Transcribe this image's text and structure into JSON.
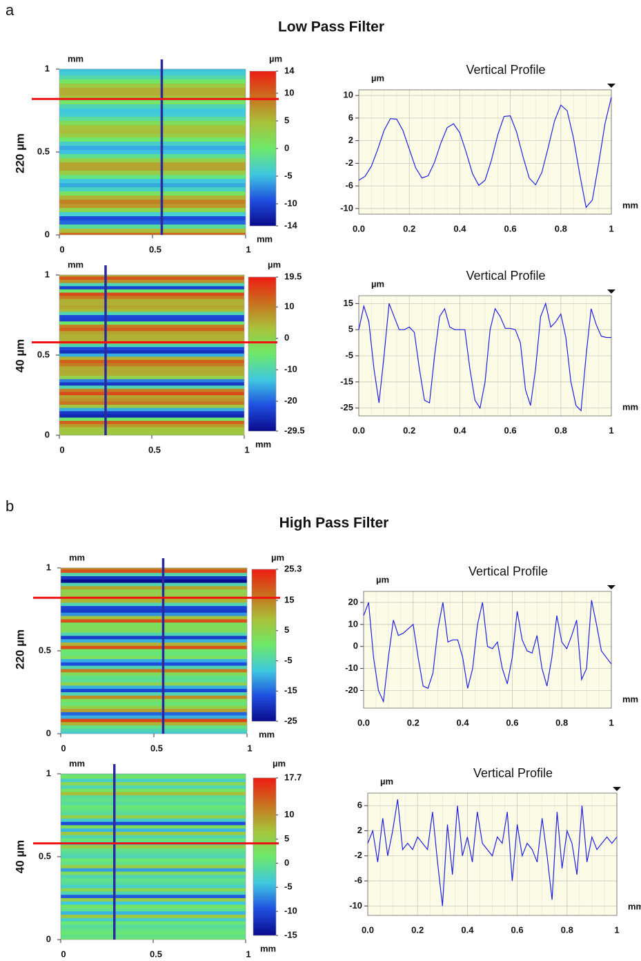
{
  "panels": [
    {
      "letter": "a",
      "title": "Low Pass Filter",
      "rows": [
        {
          "label": "220 µm"
        },
        {
          "label": "40 µm"
        }
      ]
    },
    {
      "letter": "b",
      "title": "High Pass Filter",
      "rows": [
        {
          "label": "220 µm"
        },
        {
          "label": "40 µm"
        }
      ]
    }
  ],
  "chart_data": [
    {
      "type": "heatmap",
      "xlabel": "mm",
      "ylabel": "mm",
      "colorbar_label": "µm",
      "xlim": [
        0,
        1
      ],
      "ylim": [
        0,
        1
      ],
      "xticks": [
        0,
        0.5,
        1
      ],
      "yticks": [
        0,
        0.5,
        1
      ],
      "clim": [
        -14,
        14
      ],
      "cticks": [
        14,
        10,
        5,
        0,
        -5,
        -10,
        -14
      ],
      "colormap": [
        "#0a0a8c",
        "#1f4fe0",
        "#3fc8e0",
        "#6de86a",
        "#a8c23a",
        "#c9701e",
        "#ee1c14"
      ]
    },
    {
      "type": "line",
      "title": "Vertical Profile",
      "xlabel": "mm",
      "ylabel": "µm",
      "xlim": [
        0,
        1
      ],
      "ylim": [
        -11,
        11
      ],
      "xticks": [
        {
          "value": 0,
          "label": "0.0"
        },
        0.2,
        0.4,
        0.6,
        0.8,
        1
      ],
      "yticks": [
        10,
        6,
        2,
        -2,
        -6,
        -10
      ],
      "grid": true,
      "x": [
        0,
        0.025,
        0.05,
        0.075,
        0.1,
        0.125,
        0.15,
        0.175,
        0.2,
        0.225,
        0.25,
        0.275,
        0.3,
        0.325,
        0.35,
        0.375,
        0.4,
        0.425,
        0.45,
        0.475,
        0.5,
        0.525,
        0.55,
        0.575,
        0.6,
        0.625,
        0.65,
        0.675,
        0.7,
        0.725,
        0.75,
        0.775,
        0.8,
        0.825,
        0.85,
        0.875,
        0.9,
        0.925,
        0.95,
        0.975,
        1
      ],
      "series": [
        {
          "color": "#1f1fe0",
          "values": [
            -5,
            -4.3,
            -2.5,
            0.5,
            3.8,
            5.9,
            5.8,
            3.8,
            0.5,
            -2.8,
            -4.6,
            -4.2,
            -1.8,
            1.6,
            4.3,
            5,
            3.4,
            0,
            -3.8,
            -5.9,
            -5,
            -1.5,
            3,
            6.3,
            6.4,
            3.5,
            -0.8,
            -4.6,
            -5.8,
            -3.6,
            0.8,
            5.5,
            8.3,
            7.3,
            2.5,
            -4,
            -9.8,
            -8.5,
            -2,
            5,
            9.7
          ]
        }
      ]
    },
    {
      "type": "heatmap",
      "xlabel": "mm",
      "ylabel": "mm",
      "colorbar_label": "µm",
      "xlim": [
        0,
        1
      ],
      "ylim": [
        0,
        1
      ],
      "xticks": [
        0,
        0.5,
        1
      ],
      "yticks": [
        0,
        0.5,
        1
      ],
      "clim": [
        -29.5,
        19.5
      ],
      "cticks": [
        19.5,
        10,
        0,
        -10,
        -20,
        -29.5
      ],
      "colormap": [
        "#0a0a8c",
        "#1f4fe0",
        "#3fc8e0",
        "#6de86a",
        "#a8c23a",
        "#c9701e",
        "#ee1c14"
      ]
    },
    {
      "type": "line",
      "title": "Vertical Profile",
      "xlabel": "mm",
      "ylabel": "µm",
      "xlim": [
        0,
        1
      ],
      "ylim": [
        -28,
        18
      ],
      "xticks": [
        {
          "value": 0,
          "label": "0.0"
        },
        0.2,
        0.4,
        0.6,
        0.8,
        1
      ],
      "yticks": [
        15,
        5,
        -5,
        -15,
        -25
      ],
      "grid": true,
      "x": [
        0,
        0.02,
        0.04,
        0.06,
        0.08,
        0.1,
        0.12,
        0.14,
        0.16,
        0.18,
        0.2,
        0.22,
        0.24,
        0.26,
        0.28,
        0.3,
        0.32,
        0.34,
        0.36,
        0.38,
        0.4,
        0.42,
        0.44,
        0.46,
        0.48,
        0.5,
        0.52,
        0.54,
        0.56,
        0.58,
        0.6,
        0.62,
        0.64,
        0.66,
        0.68,
        0.7,
        0.72,
        0.74,
        0.76,
        0.78,
        0.8,
        0.82,
        0.84,
        0.86,
        0.88,
        0.9,
        0.92,
        0.94,
        0.96,
        0.98,
        1
      ],
      "series": [
        {
          "color": "#1f1fe0",
          "values": [
            5,
            14,
            8,
            -10,
            -23,
            -5,
            15,
            10,
            5,
            5,
            6,
            4,
            -10,
            -22,
            -23,
            -5,
            10,
            13,
            6,
            5,
            5,
            5,
            -10,
            -22,
            -25,
            -15,
            5,
            13,
            10,
            5.5,
            5.5,
            5,
            0,
            -18,
            -24,
            -10,
            10,
            15,
            6,
            8,
            11,
            2,
            -15,
            -24,
            -26,
            -5,
            13,
            7,
            2.5,
            2,
            2
          ]
        }
      ]
    },
    {
      "type": "heatmap",
      "xlabel": "mm",
      "ylabel": "mm",
      "colorbar_label": "µm",
      "xlim": [
        0,
        1
      ],
      "ylim": [
        0,
        1
      ],
      "xticks": [
        0,
        0.5,
        1
      ],
      "yticks": [
        0,
        0.5,
        1
      ],
      "clim": [
        -25,
        25.3
      ],
      "cticks": [
        25.3,
        15,
        5,
        -5,
        -15,
        -25
      ],
      "colormap": [
        "#0a0a8c",
        "#1f4fe0",
        "#3fc8e0",
        "#6de86a",
        "#a8c23a",
        "#c9701e",
        "#ee1c14"
      ]
    },
    {
      "type": "line",
      "title": "Vertical Profile",
      "xlabel": "mm",
      "ylabel": "µm",
      "xlim": [
        0,
        1
      ],
      "ylim": [
        -28,
        25
      ],
      "xticks": [
        {
          "value": 0,
          "label": "0.0"
        },
        0.2,
        0.4,
        0.6,
        0.8,
        1
      ],
      "yticks": [
        20,
        10,
        0,
        -10,
        -20
      ],
      "grid": true,
      "x": [
        0,
        0.02,
        0.04,
        0.06,
        0.08,
        0.1,
        0.12,
        0.14,
        0.16,
        0.18,
        0.2,
        0.22,
        0.24,
        0.26,
        0.28,
        0.3,
        0.32,
        0.34,
        0.36,
        0.38,
        0.4,
        0.42,
        0.44,
        0.46,
        0.48,
        0.5,
        0.52,
        0.54,
        0.56,
        0.58,
        0.6,
        0.62,
        0.64,
        0.66,
        0.68,
        0.7,
        0.72,
        0.74,
        0.76,
        0.78,
        0.8,
        0.82,
        0.84,
        0.86,
        0.88,
        0.9,
        0.92,
        0.94,
        0.96,
        0.98,
        1
      ],
      "series": [
        {
          "color": "#1f1fe0",
          "values": [
            14,
            20,
            -5,
            -20,
            -25,
            -5,
            12,
            5,
            6,
            8,
            10,
            -5,
            -18,
            -19,
            -12,
            8,
            20,
            2,
            3,
            3,
            -5,
            -19,
            -10,
            10,
            20,
            0,
            -1,
            2,
            -10,
            -17,
            -5,
            16,
            3,
            -2,
            -3,
            5,
            -10,
            -18,
            -5,
            14,
            2,
            -1,
            5,
            12,
            -15,
            -10,
            21,
            10,
            -2,
            -5,
            -8
          ]
        }
      ]
    },
    {
      "type": "heatmap",
      "xlabel": "mm",
      "ylabel": "mm",
      "colorbar_label": "µm",
      "xlim": [
        0,
        1
      ],
      "ylim": [
        0,
        1
      ],
      "xticks": [
        0,
        0.5,
        1
      ],
      "yticks": [
        0,
        0.5,
        1
      ],
      "clim": [
        -15,
        17.7
      ],
      "cticks": [
        17.7,
        10,
        5,
        0,
        -5,
        -10,
        -15
      ],
      "colormap": [
        "#0a0a8c",
        "#1f4fe0",
        "#3fc8e0",
        "#6de86a",
        "#a8c23a",
        "#c9701e",
        "#ee1c14"
      ]
    },
    {
      "type": "line",
      "title": "Vertical Profile",
      "xlabel": "mm",
      "ylabel": "µm",
      "xlim": [
        0,
        1
      ],
      "ylim": [
        -11.5,
        8
      ],
      "xticks": [
        {
          "value": 0,
          "label": "0.0"
        },
        0.2,
        0.4,
        0.6,
        0.8,
        1
      ],
      "yticks": [
        6,
        2,
        -2,
        -6,
        -10
      ],
      "grid": true,
      "x": [
        0,
        0.02,
        0.04,
        0.06,
        0.08,
        0.1,
        0.12,
        0.14,
        0.16,
        0.18,
        0.2,
        0.22,
        0.24,
        0.26,
        0.28,
        0.3,
        0.32,
        0.34,
        0.36,
        0.38,
        0.4,
        0.42,
        0.44,
        0.46,
        0.48,
        0.5,
        0.52,
        0.54,
        0.56,
        0.58,
        0.6,
        0.62,
        0.64,
        0.66,
        0.68,
        0.7,
        0.72,
        0.74,
        0.76,
        0.78,
        0.8,
        0.82,
        0.84,
        0.86,
        0.88,
        0.9,
        0.92,
        0.94,
        0.96,
        0.98,
        1
      ],
      "series": [
        {
          "color": "#1f1fe0",
          "values": [
            0,
            2,
            -3,
            4,
            -2,
            2,
            7,
            -1,
            0,
            -1,
            1,
            0,
            -1,
            5,
            -3,
            -10,
            3,
            -5,
            6,
            -2,
            1,
            -3,
            5,
            0,
            -1,
            -2,
            1,
            0,
            5,
            -6,
            3,
            -2,
            0,
            -1,
            -3,
            4,
            -2,
            -9,
            5,
            -4,
            2,
            0,
            -5,
            6,
            -3,
            1,
            -1,
            0,
            1,
            0,
            1
          ]
        }
      ]
    }
  ]
}
